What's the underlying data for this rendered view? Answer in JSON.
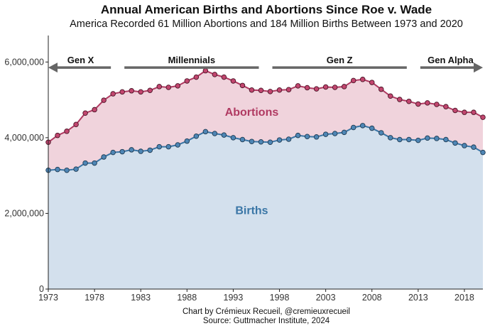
{
  "chart_data": {
    "type": "area",
    "title": "Annual American Births and Abortions Since Roe v. Wade",
    "subtitle": "America Recorded 61 Million Abortions and 184 Million Births Between 1973 and 2020",
    "x": [
      1973,
      1974,
      1975,
      1976,
      1977,
      1978,
      1979,
      1980,
      1981,
      1982,
      1983,
      1984,
      1985,
      1986,
      1987,
      1988,
      1989,
      1990,
      1991,
      1992,
      1993,
      1994,
      1995,
      1996,
      1997,
      1998,
      1999,
      2000,
      2001,
      2002,
      2003,
      2004,
      2005,
      2006,
      2007,
      2008,
      2009,
      2010,
      2011,
      2012,
      2013,
      2014,
      2015,
      2016,
      2017,
      2018,
      2019,
      2020
    ],
    "series": [
      {
        "name": "Births",
        "color": "#3a76a6",
        "fill": "#d3e0ed",
        "values": [
          3140000,
          3160000,
          3140000,
          3170000,
          3330000,
          3330000,
          3490000,
          3610000,
          3630000,
          3680000,
          3640000,
          3670000,
          3760000,
          3760000,
          3810000,
          3910000,
          4040000,
          4160000,
          4110000,
          4070000,
          4000000,
          3950000,
          3900000,
          3890000,
          3880000,
          3940000,
          3960000,
          4060000,
          4030000,
          4020000,
          4090000,
          4110000,
          4140000,
          4270000,
          4320000,
          4250000,
          4130000,
          4000000,
          3950000,
          3950000,
          3930000,
          3990000,
          3980000,
          3950000,
          3860000,
          3790000,
          3750000,
          3610000
        ]
      },
      {
        "name": "Abortions",
        "color": "#b03a62",
        "fill": "#f0d3dc",
        "values": [
          740000,
          900000,
          1030000,
          1180000,
          1320000,
          1410000,
          1500000,
          1550000,
          1580000,
          1560000,
          1570000,
          1580000,
          1590000,
          1570000,
          1560000,
          1590000,
          1560000,
          1610000,
          1560000,
          1530000,
          1500000,
          1430000,
          1360000,
          1360000,
          1340000,
          1320000,
          1310000,
          1310000,
          1290000,
          1270000,
          1250000,
          1220000,
          1210000,
          1240000,
          1220000,
          1210000,
          1150000,
          1100000,
          1060000,
          1010000,
          960000,
          930000,
          900000,
          870000,
          860000,
          880000,
          920000,
          930000
        ]
      }
    ],
    "ylim": [
      0,
      6700000
    ],
    "yticks": [
      0,
      2000000,
      4000000,
      6000000
    ],
    "ytick_labels": [
      "0",
      "2,000,000",
      "4,000,000",
      "6,000,000"
    ],
    "xticks": [
      1973,
      1978,
      1983,
      1988,
      1993,
      1998,
      2003,
      2008,
      2013,
      2018
    ],
    "xtick_labels": [
      "1973",
      "1978",
      "1983",
      "1988",
      "1993",
      "1998",
      "2003",
      "2008",
      "2013",
      "2018"
    ],
    "grid": false,
    "area_labels": [
      {
        "text": "Births",
        "series": "Births",
        "x": 1995,
        "y": 1980000
      },
      {
        "text": "Abortions",
        "series": "Abortions",
        "x": 1995,
        "y": 4580000
      }
    ],
    "generations": [
      {
        "label": "Gen X",
        "start": 1973,
        "end": 1980,
        "arrow": "left"
      },
      {
        "label": "Millennials",
        "start": 1981,
        "end": 1996,
        "arrow": "none"
      },
      {
        "label": "Gen Z",
        "start": 1997,
        "end": 2012,
        "arrow": "none"
      },
      {
        "label": "Gen Alpha",
        "start": 2013,
        "end": 2020,
        "arrow": "right"
      }
    ],
    "generation_band_y": 6040000,
    "caption": [
      "Chart by Crémieux Recueil, @cremieuxrecueil",
      "Source: Guttmacher Institute, 2024"
    ]
  }
}
